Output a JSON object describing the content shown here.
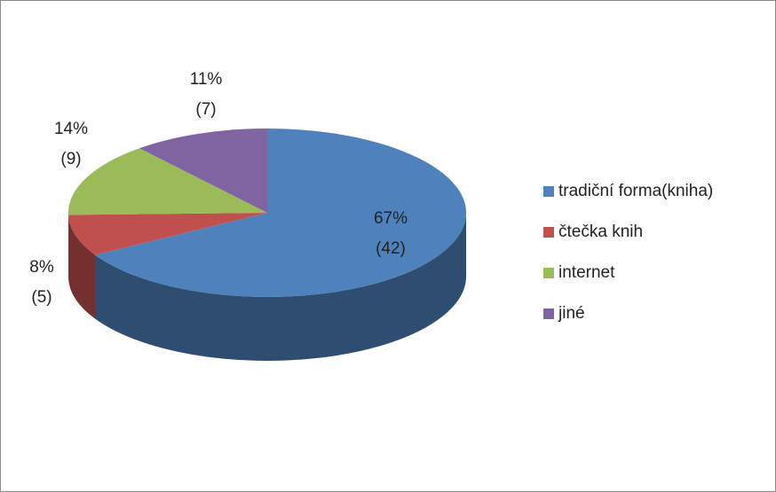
{
  "chart_data": {
    "type": "pie",
    "categories": [
      "tradiční forma(kniha)",
      "čtečka knih",
      "internet",
      "jiné"
    ],
    "values": [
      42,
      5,
      9,
      7
    ],
    "value_labels": [
      "(42)",
      "(5)",
      "(9)",
      "(7)"
    ],
    "percent_labels": [
      "67%",
      "8%",
      "14%",
      "11%"
    ],
    "colors": [
      "#4f81bd",
      "#c0504d",
      "#9bbb59",
      "#8064a2"
    ],
    "legend": "right"
  }
}
